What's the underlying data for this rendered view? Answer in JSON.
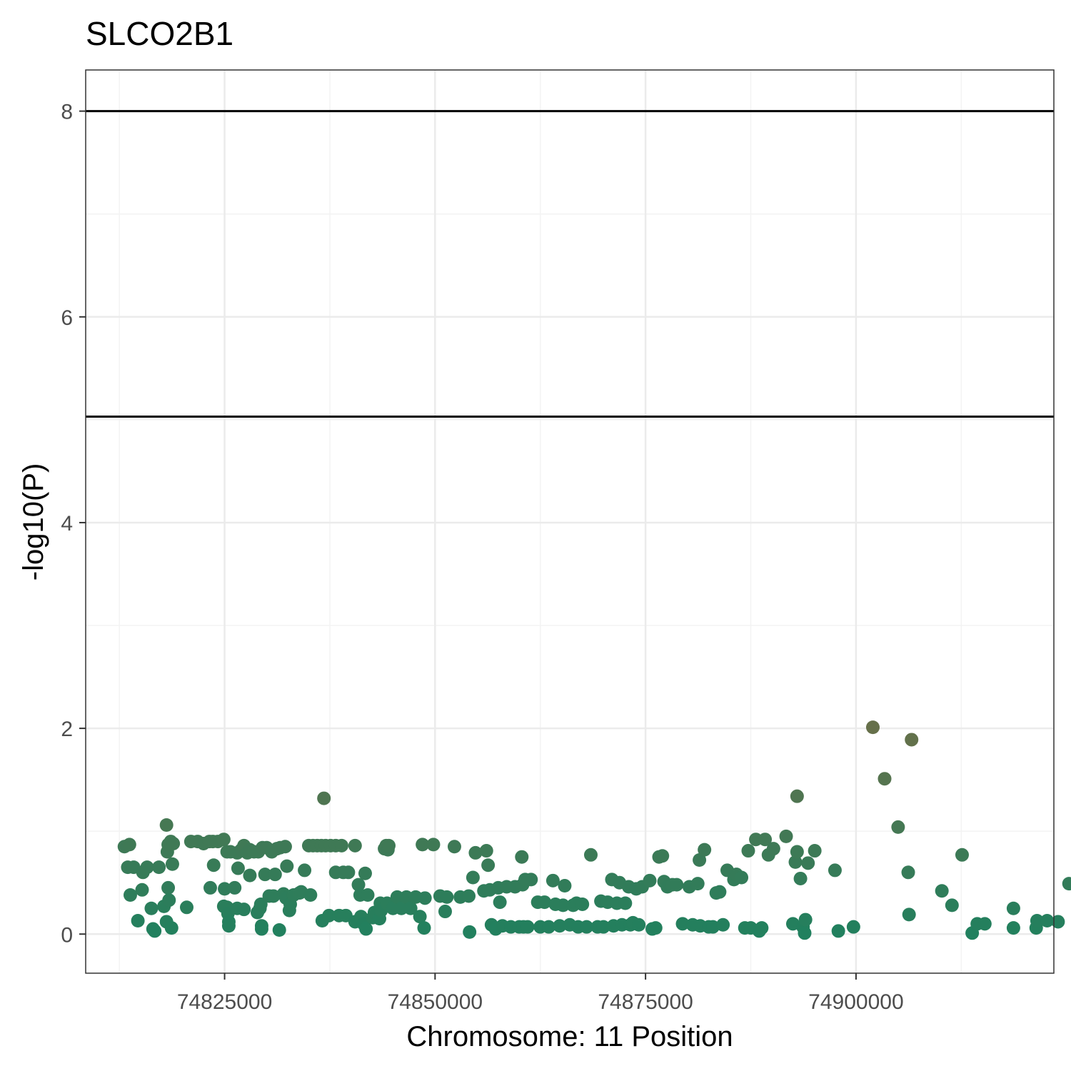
{
  "chart_data": {
    "type": "scatter",
    "title": "SLCO2B1",
    "xlabel": "Chromosome: 11 Position",
    "ylabel": "-log10(P)",
    "xlim": [
      74808500,
      74923500
    ],
    "ylim": [
      -0.38,
      8.4
    ],
    "x_ticks": [
      74825000,
      74850000,
      74875000,
      74900000
    ],
    "x_tick_labels": [
      "74825000",
      "74850000",
      "74875000",
      "74900000"
    ],
    "y_ticks": [
      0,
      2,
      4,
      6,
      8
    ],
    "y_tick_labels": [
      "0",
      "2",
      "4",
      "6",
      "8"
    ],
    "hlines": [
      8,
      5.03
    ],
    "grid": true,
    "legend": "none",
    "colors": {
      "point_low": "#21805E",
      "point_high": "#66704A",
      "hline": "#000000",
      "grid_major": "#EBEBEB",
      "grid_minor": "#F3F3F3",
      "panel_border": "#333333"
    },
    "points": [
      [
        74813100,
        0.85
      ],
      [
        74813700,
        0.87
      ],
      [
        74813500,
        0.65
      ],
      [
        74814200,
        0.65
      ],
      [
        74813800,
        0.38
      ],
      [
        74814700,
        0.13
      ],
      [
        74815200,
        0.43
      ],
      [
        74815300,
        0.6
      ],
      [
        74815800,
        0.65
      ],
      [
        74816300,
        0.25
      ],
      [
        74816500,
        0.05
      ],
      [
        74816700,
        0.03
      ],
      [
        74817200,
        0.65
      ],
      [
        74817800,
        0.27
      ],
      [
        74818100,
        0.12
      ],
      [
        74818300,
        0.45
      ],
      [
        74818400,
        0.33
      ],
      [
        74818700,
        0.06
      ],
      [
        74818800,
        0.68
      ],
      [
        74818200,
        0.8
      ],
      [
        74818300,
        0.87
      ],
      [
        74818600,
        0.9
      ],
      [
        74818900,
        0.88
      ],
      [
        74818100,
        1.06
      ],
      [
        74820500,
        0.26
      ],
      [
        74821000,
        0.9
      ],
      [
        74821800,
        0.9
      ],
      [
        74822500,
        0.88
      ],
      [
        74823200,
        0.9
      ],
      [
        74823600,
        0.9
      ],
      [
        74824200,
        0.9
      ],
      [
        74824900,
        0.92
      ],
      [
        74823300,
        0.45
      ],
      [
        74823700,
        0.67
      ],
      [
        74825000,
        0.44
      ],
      [
        74826200,
        0.45
      ],
      [
        74825300,
        0.8
      ],
      [
        74825700,
        0.8
      ],
      [
        74826500,
        0.79
      ],
      [
        74827000,
        0.82
      ],
      [
        74826600,
        0.64
      ],
      [
        74827300,
        0.86
      ],
      [
        74827700,
        0.79
      ],
      [
        74828000,
        0.82
      ],
      [
        74828500,
        0.8
      ],
      [
        74829000,
        0.8
      ],
      [
        74829500,
        0.84
      ],
      [
        74830000,
        0.84
      ],
      [
        74830600,
        0.8
      ],
      [
        74831200,
        0.83
      ],
      [
        74831600,
        0.84
      ],
      [
        74832200,
        0.85
      ],
      [
        74824900,
        0.27
      ],
      [
        74825300,
        0.26
      ],
      [
        74825400,
        0.2
      ],
      [
        74825500,
        0.12
      ],
      [
        74825500,
        0.08
      ],
      [
        74826500,
        0.25
      ],
      [
        74827300,
        0.24
      ],
      [
        74828000,
        0.57
      ],
      [
        74828900,
        0.21
      ],
      [
        74829200,
        0.25
      ],
      [
        74829300,
        0.29
      ],
      [
        74829400,
        0.08
      ],
      [
        74829400,
        0.05
      ],
      [
        74829800,
        0.58
      ],
      [
        74830300,
        0.37
      ],
      [
        74830800,
        0.37
      ],
      [
        74831000,
        0.58
      ],
      [
        74831500,
        0.04
      ],
      [
        74832000,
        0.39
      ],
      [
        74832300,
        0.35
      ],
      [
        74832400,
        0.66
      ],
      [
        74832700,
        0.23
      ],
      [
        74832800,
        0.29
      ],
      [
        74833200,
        0.38
      ],
      [
        74833900,
        0.4
      ],
      [
        74834100,
        0.41
      ],
      [
        74834500,
        0.62
      ],
      [
        74835200,
        0.38
      ],
      [
        74835000,
        0.86
      ],
      [
        74835500,
        0.86
      ],
      [
        74836000,
        0.86
      ],
      [
        74836500,
        0.86
      ],
      [
        74837000,
        0.86
      ],
      [
        74837600,
        0.86
      ],
      [
        74838200,
        0.86
      ],
      [
        74838900,
        0.86
      ],
      [
        74836800,
        1.32
      ],
      [
        74836600,
        0.13
      ],
      [
        74837400,
        0.18
      ],
      [
        74838200,
        0.6
      ],
      [
        74838600,
        0.18
      ],
      [
        74839100,
        0.6
      ],
      [
        74839400,
        0.18
      ],
      [
        74839700,
        0.6
      ],
      [
        74840500,
        0.86
      ],
      [
        74840500,
        0.12
      ],
      [
        74840900,
        0.48
      ],
      [
        74841100,
        0.38
      ],
      [
        74841200,
        0.17
      ],
      [
        74841500,
        0.1
      ],
      [
        74841700,
        0.59
      ],
      [
        74841800,
        0.05
      ],
      [
        74842000,
        0.38
      ],
      [
        74842600,
        0.16
      ],
      [
        74842800,
        0.21
      ],
      [
        74843400,
        0.15
      ],
      [
        74843500,
        0.3
      ],
      [
        74843600,
        0.23
      ],
      [
        74844000,
        0.83
      ],
      [
        74844200,
        0.86
      ],
      [
        74844300,
        0.3
      ],
      [
        74844400,
        0.82
      ],
      [
        74844500,
        0.86
      ],
      [
        74845000,
        0.25
      ],
      [
        74845500,
        0.36
      ],
      [
        74846000,
        0.25
      ],
      [
        74846600,
        0.36
      ],
      [
        74847100,
        0.25
      ],
      [
        74847700,
        0.36
      ],
      [
        74848200,
        0.17
      ],
      [
        74848500,
        0.87
      ],
      [
        74848700,
        0.06
      ],
      [
        74848800,
        0.35
      ],
      [
        74849800,
        0.87
      ],
      [
        74850600,
        0.37
      ],
      [
        74851200,
        0.22
      ],
      [
        74851400,
        0.36
      ],
      [
        74852300,
        0.85
      ],
      [
        74853000,
        0.36
      ],
      [
        74854000,
        0.37
      ],
      [
        74854100,
        0.02
      ],
      [
        74854500,
        0.55
      ],
      [
        74854800,
        0.79
      ],
      [
        74855800,
        0.42
      ],
      [
        74856100,
        0.81
      ],
      [
        74856300,
        0.67
      ],
      [
        74856500,
        0.43
      ],
      [
        74856700,
        0.09
      ],
      [
        74857200,
        0.05
      ],
      [
        74857500,
        0.45
      ],
      [
        74857700,
        0.31
      ],
      [
        74858000,
        0.08
      ],
      [
        74858500,
        0.46
      ],
      [
        74859000,
        0.07
      ],
      [
        74859500,
        0.46
      ],
      [
        74860000,
        0.07
      ],
      [
        74860300,
        0.75
      ],
      [
        74860400,
        0.48
      ],
      [
        74860500,
        0.07
      ],
      [
        74860700,
        0.53
      ],
      [
        74861000,
        0.07
      ],
      [
        74861400,
        0.53
      ],
      [
        74862200,
        0.31
      ],
      [
        74862500,
        0.07
      ],
      [
        74863000,
        0.31
      ],
      [
        74863500,
        0.07
      ],
      [
        74864000,
        0.52
      ],
      [
        74864300,
        0.29
      ],
      [
        74864800,
        0.08
      ],
      [
        74865200,
        0.28
      ],
      [
        74865400,
        0.47
      ],
      [
        74866000,
        0.09
      ],
      [
        74866400,
        0.28
      ],
      [
        74866800,
        0.3
      ],
      [
        74867000,
        0.07
      ],
      [
        74867500,
        0.29
      ],
      [
        74868000,
        0.07
      ],
      [
        74868500,
        0.77
      ],
      [
        74869300,
        0.07
      ],
      [
        74869700,
        0.32
      ],
      [
        74870000,
        0.07
      ],
      [
        74870500,
        0.31
      ],
      [
        74871000,
        0.53
      ],
      [
        74871200,
        0.08
      ],
      [
        74871600,
        0.3
      ],
      [
        74871900,
        0.5
      ],
      [
        74872200,
        0.09
      ],
      [
        74872600,
        0.3
      ],
      [
        74873000,
        0.46
      ],
      [
        74873200,
        0.09
      ],
      [
        74873500,
        0.11
      ],
      [
        74873900,
        0.44
      ],
      [
        74874200,
        0.09
      ],
      [
        74874600,
        0.46
      ],
      [
        74875500,
        0.52
      ],
      [
        74875800,
        0.05
      ],
      [
        74876200,
        0.06
      ],
      [
        74876600,
        0.75
      ],
      [
        74877000,
        0.76
      ],
      [
        74877200,
        0.51
      ],
      [
        74877600,
        0.46
      ],
      [
        74878200,
        0.48
      ],
      [
        74878700,
        0.48
      ],
      [
        74879400,
        0.1
      ],
      [
        74880200,
        0.46
      ],
      [
        74880600,
        0.09
      ],
      [
        74881200,
        0.49
      ],
      [
        74881400,
        0.72
      ],
      [
        74881500,
        0.08
      ],
      [
        74882000,
        0.82
      ],
      [
        74882500,
        0.07
      ],
      [
        74883000,
        0.07
      ],
      [
        74883400,
        0.4
      ],
      [
        74883800,
        0.41
      ],
      [
        74884200,
        0.09
      ],
      [
        74884700,
        0.62
      ],
      [
        74885500,
        0.53
      ],
      [
        74885800,
        0.58
      ],
      [
        74886400,
        0.55
      ],
      [
        74886800,
        0.06
      ],
      [
        74887200,
        0.81
      ],
      [
        74887500,
        0.06
      ],
      [
        74888100,
        0.92
      ],
      [
        74888500,
        0.03
      ],
      [
        74888800,
        0.06
      ],
      [
        74889200,
        0.92
      ],
      [
        74889600,
        0.77
      ],
      [
        74890200,
        0.83
      ],
      [
        74891700,
        0.95
      ],
      [
        74892500,
        0.1
      ],
      [
        74892800,
        0.7
      ],
      [
        74893000,
        0.8
      ],
      [
        74893000,
        1.34
      ],
      [
        74893400,
        0.54
      ],
      [
        74893700,
        0.07
      ],
      [
        74893900,
        0.01
      ],
      [
        74894000,
        0.14
      ],
      [
        74894300,
        0.69
      ],
      [
        74895100,
        0.81
      ],
      [
        74897500,
        0.62
      ],
      [
        74897900,
        0.03
      ],
      [
        74899700,
        0.07
      ],
      [
        74902000,
        2.01
      ],
      [
        74903400,
        1.51
      ],
      [
        74905000,
        1.04
      ],
      [
        74906200,
        0.6
      ],
      [
        74906300,
        0.19
      ],
      [
        74906600,
        1.89
      ],
      [
        74910200,
        0.42
      ],
      [
        74911400,
        0.28
      ],
      [
        74912600,
        0.77
      ],
      [
        74913800,
        0.01
      ],
      [
        74914400,
        0.1
      ],
      [
        74915300,
        0.1
      ],
      [
        74918700,
        0.25
      ],
      [
        74918700,
        0.06
      ],
      [
        74921400,
        0.06
      ],
      [
        74921500,
        0.13
      ],
      [
        74922700,
        0.13
      ],
      [
        74924000,
        0.12
      ],
      [
        74925300,
        0.49
      ]
    ]
  }
}
